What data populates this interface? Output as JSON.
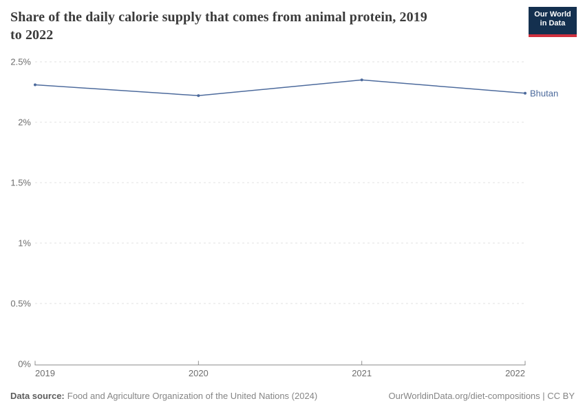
{
  "header": {
    "title": "Share of the daily calorie supply that comes from animal protein, 2019 to 2022",
    "title_line1": "Share of the daily calorie supply that comes from animal protein, 2019",
    "title_line2": "to 2022",
    "logo_line1": "Our World",
    "logo_line2": "in Data"
  },
  "chart_data": {
    "type": "line",
    "title": "Share of the daily calorie supply that comes from animal protein, 2019 to 2022",
    "x": [
      2019,
      2020,
      2021,
      2022
    ],
    "x_ticks": [
      "2019",
      "2020",
      "2021",
      "2022"
    ],
    "series": [
      {
        "name": "Bhutan",
        "values": [
          2.31,
          2.22,
          2.35,
          2.24
        ]
      }
    ],
    "ylim": [
      0,
      2.5
    ],
    "y_ticks": [
      {
        "label": "0%",
        "value": 0
      },
      {
        "label": "0.5%",
        "value": 0.5
      },
      {
        "label": "1%",
        "value": 1
      },
      {
        "label": "1.5%",
        "value": 1.5
      },
      {
        "label": "2%",
        "value": 2
      },
      {
        "label": "2.5%",
        "value": 2.5
      }
    ],
    "grid": "horizontal-dashed",
    "legend_position": "end-of-line-label",
    "xlabel": "",
    "ylabel": ""
  },
  "colors": {
    "line": "#4c6a9c",
    "series_label": "#4c6a9c",
    "gridline": "#e2e2e2",
    "axis": "#8f8f8f",
    "tick_text": "#6e6e6e",
    "title_text": "#3b3b3b",
    "logo_bg": "#14304f",
    "logo_bar": "#d0303e",
    "footer_text": "#858585"
  },
  "footer": {
    "datasource_label": "Data source:",
    "datasource_text": "Food and Agriculture Organization of the United Nations (2024)",
    "attribution": "OurWorldinData.org/diet-compositions | CC BY"
  }
}
